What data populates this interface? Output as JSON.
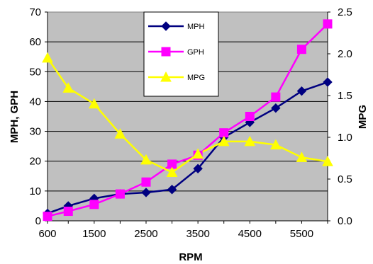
{
  "chart_data": {
    "type": "line",
    "x": [
      600,
      1000,
      1500,
      2000,
      2500,
      3000,
      3500,
      4000,
      4500,
      5000,
      5500,
      6000
    ],
    "xticks": [
      "600",
      "1500",
      "2500",
      "3500",
      "4500",
      "5500"
    ],
    "xlabel": "RPM",
    "ylabel_left": "MPH, GPH",
    "ylabel_right": "MPG",
    "ylim_left": [
      0,
      70
    ],
    "ylim_right": [
      0.0,
      2.5
    ],
    "yticks_left": [
      "0",
      "10",
      "20",
      "30",
      "40",
      "50",
      "60",
      "70"
    ],
    "yticks_right": [
      "0.0",
      "0.5",
      "1.0",
      "1.5",
      "2.0",
      "2.5"
    ],
    "plot_background": "#C0C0C0",
    "grid": "horizontal",
    "legend_position": "top-center",
    "series": [
      {
        "name": "MPH",
        "axis": "left",
        "color": "#000080",
        "marker": "diamond",
        "values": [
          2.5,
          5,
          7.5,
          9,
          9.5,
          10.5,
          17.5,
          28,
          33,
          37.8,
          43.5,
          46.5
        ]
      },
      {
        "name": "GPH",
        "axis": "left",
        "color": "#FF00FF",
        "marker": "square",
        "values": [
          1.5,
          3.2,
          5.5,
          9,
          13,
          19,
          22,
          29.5,
          35,
          41.5,
          57.5,
          66
        ]
      },
      {
        "name": "MPG",
        "axis": "right",
        "color": "#FFFF00",
        "marker": "triangle",
        "values": [
          1.95,
          1.59,
          1.4,
          1.04,
          0.73,
          0.58,
          0.8,
          0.95,
          0.95,
          0.91,
          0.76,
          0.71
        ]
      }
    ]
  }
}
